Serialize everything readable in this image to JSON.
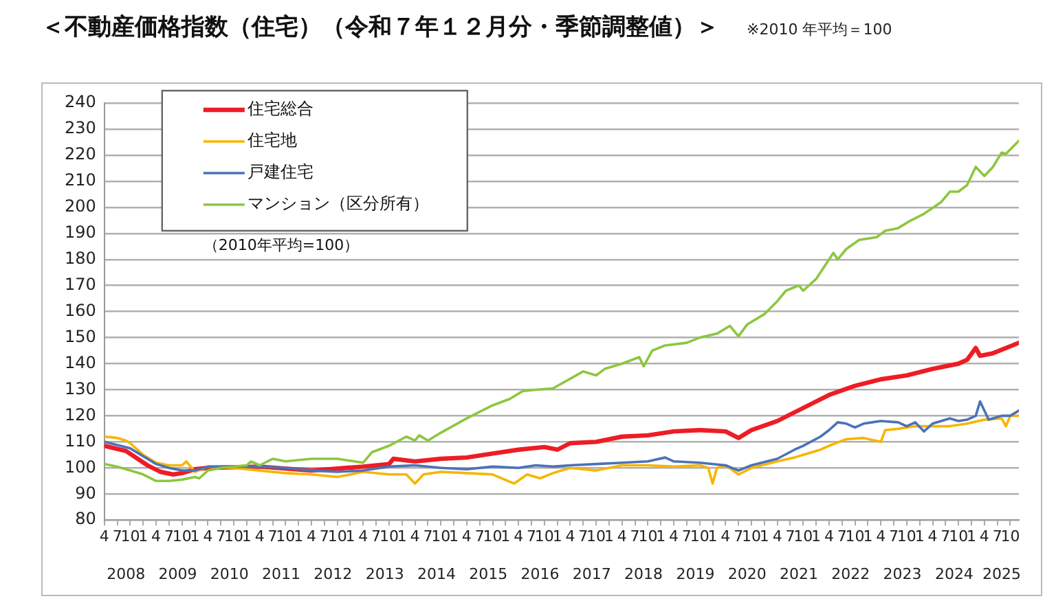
{
  "chart_data": {
    "type": "line",
    "title": "＜不動産価格指数（住宅）（令和７年１２月分・季節調整値）＞",
    "subtitle": "※2010 年平均＝100",
    "annotations": [
      "（2010年平均=100）"
    ],
    "xlim": [
      "2008-04",
      "2025-12"
    ],
    "xticks": [
      {
        "value": "2008-04",
        "label": "4"
      },
      {
        "value": "2008-07",
        "label": "7"
      },
      {
        "value": "2008-10",
        "label": "10"
      },
      {
        "value": "2009-01",
        "label": "1"
      },
      {
        "value": "2009-04",
        "label": "4"
      },
      {
        "value": "2009-07",
        "label": "7"
      },
      {
        "value": "2009-10",
        "label": "10"
      },
      {
        "value": "2010-01",
        "label": "1"
      },
      {
        "value": "2010-04",
        "label": "4"
      },
      {
        "value": "2010-07",
        "label": "7"
      },
      {
        "value": "2010-10",
        "label": "10"
      },
      {
        "value": "2011-01",
        "label": "1"
      },
      {
        "value": "2011-04",
        "label": "4"
      },
      {
        "value": "2011-07",
        "label": "7"
      },
      {
        "value": "2011-10",
        "label": "10"
      },
      {
        "value": "2012-01",
        "label": "1"
      },
      {
        "value": "2012-04",
        "label": "4"
      },
      {
        "value": "2012-07",
        "label": "7"
      },
      {
        "value": "2012-10",
        "label": "10"
      },
      {
        "value": "2013-01",
        "label": "1"
      },
      {
        "value": "2013-04",
        "label": "4"
      },
      {
        "value": "2013-07",
        "label": "7"
      },
      {
        "value": "2013-10",
        "label": "10"
      },
      {
        "value": "2014-01",
        "label": "1"
      },
      {
        "value": "2014-04",
        "label": "4"
      },
      {
        "value": "2014-07",
        "label": "7"
      },
      {
        "value": "2014-10",
        "label": "10"
      },
      {
        "value": "2015-01",
        "label": "1"
      },
      {
        "value": "2015-04",
        "label": "4"
      },
      {
        "value": "2015-07",
        "label": "7"
      },
      {
        "value": "2015-10",
        "label": "10"
      },
      {
        "value": "2016-01",
        "label": "1"
      },
      {
        "value": "2016-04",
        "label": "4"
      },
      {
        "value": "2016-07",
        "label": "7"
      },
      {
        "value": "2016-10",
        "label": "10"
      },
      {
        "value": "2017-01",
        "label": "1"
      },
      {
        "value": "2017-04",
        "label": "4"
      },
      {
        "value": "2017-07",
        "label": "7"
      },
      {
        "value": "2017-10",
        "label": "10"
      },
      {
        "value": "2018-01",
        "label": "1"
      },
      {
        "value": "2018-04",
        "label": "4"
      },
      {
        "value": "2018-07",
        "label": "7"
      },
      {
        "value": "2018-10",
        "label": "10"
      },
      {
        "value": "2019-01",
        "label": "1"
      },
      {
        "value": "2019-04",
        "label": "4"
      },
      {
        "value": "2019-07",
        "label": "7"
      },
      {
        "value": "2019-10",
        "label": "10"
      },
      {
        "value": "2020-01",
        "label": "1"
      },
      {
        "value": "2020-04",
        "label": "4"
      },
      {
        "value": "2020-07",
        "label": "7"
      },
      {
        "value": "2020-10",
        "label": "10"
      },
      {
        "value": "2021-01",
        "label": "1"
      },
      {
        "value": "2021-04",
        "label": "4"
      },
      {
        "value": "2021-07",
        "label": "7"
      },
      {
        "value": "2021-10",
        "label": "10"
      },
      {
        "value": "2022-01",
        "label": "1"
      },
      {
        "value": "2022-04",
        "label": "4"
      },
      {
        "value": "2022-07",
        "label": "7"
      },
      {
        "value": "2022-10",
        "label": "10"
      },
      {
        "value": "2023-01",
        "label": "1"
      },
      {
        "value": "2023-04",
        "label": "4"
      },
      {
        "value": "2023-07",
        "label": "7"
      },
      {
        "value": "2023-10",
        "label": "10"
      },
      {
        "value": "2024-01",
        "label": "1"
      },
      {
        "value": "2024-04",
        "label": "4"
      },
      {
        "value": "2024-07",
        "label": "7"
      },
      {
        "value": "2024-10",
        "label": "10"
      },
      {
        "value": "2025-01",
        "label": "1"
      },
      {
        "value": "2025-04",
        "label": "4"
      },
      {
        "value": "2025-07",
        "label": "7"
      },
      {
        "value": "2025-10",
        "label": "10"
      }
    ],
    "x2lim": [
      "2008-04",
      "2025-12"
    ],
    "x2ticks": [
      {
        "value": "2008-09",
        "label": "2008"
      },
      {
        "value": "2009-09",
        "label": "2009"
      },
      {
        "value": "2010-09",
        "label": "2010"
      },
      {
        "value": "2011-09",
        "label": "2011"
      },
      {
        "value": "2012-09",
        "label": "2012"
      },
      {
        "value": "2013-09",
        "label": "2013"
      },
      {
        "value": "2014-09",
        "label": "2014"
      },
      {
        "value": "2015-09",
        "label": "2015"
      },
      {
        "value": "2016-09",
        "label": "2016"
      },
      {
        "value": "2017-09",
        "label": "2017"
      },
      {
        "value": "2018-09",
        "label": "2018"
      },
      {
        "value": "2019-09",
        "label": "2019"
      },
      {
        "value": "2020-09",
        "label": "2020"
      },
      {
        "value": "2021-09",
        "label": "2021"
      },
      {
        "value": "2022-09",
        "label": "2022"
      },
      {
        "value": "2023-09",
        "label": "2023"
      },
      {
        "value": "2024-09",
        "label": "2024"
      },
      {
        "value": "2025-08",
        "label": "2025"
      }
    ],
    "ylim": [
      80,
      240
    ],
    "yticks": [
      80,
      90,
      100,
      110,
      120,
      130,
      140,
      150,
      160,
      170,
      180,
      190,
      200,
      210,
      220,
      230,
      240
    ],
    "grid": "y",
    "legend": "top left",
    "marker": "none",
    "line_style": "solid",
    "series": [
      {
        "name": "住宅総合",
        "color": "#ee1c25",
        "x": [
          "2008-04",
          "2008-09",
          "2009-02",
          "2009-05",
          "2009-08",
          "2009-10",
          "2010-01",
          "2010-04",
          "2011-04",
          "2012-04",
          "2013-04",
          "2013-10",
          "2013-11",
          "2014-04",
          "2014-10",
          "2015-04",
          "2015-10",
          "2016-04",
          "2016-10",
          "2017-01",
          "2017-04",
          "2017-10",
          "2018-04",
          "2018-10",
          "2019-04",
          "2019-10",
          "2020-04",
          "2020-07",
          "2020-10",
          "2021-04",
          "2021-10",
          "2022-04",
          "2022-10",
          "2023-04",
          "2023-10",
          "2024-04",
          "2024-10",
          "2024-12",
          "2025-02",
          "2025-03",
          "2025-06",
          "2025-12"
        ],
        "values": [
          108.5,
          106.5,
          101,
          98.5,
          97.5,
          98,
          99.5,
          100,
          100.5,
          99,
          100.5,
          101.5,
          103.5,
          102.5,
          103.5,
          104,
          105.5,
          107,
          108,
          107,
          109.5,
          110,
          112,
          112.5,
          114,
          114.5,
          114,
          111.5,
          114.5,
          118,
          123,
          128,
          131.5,
          134,
          135.5,
          138,
          140,
          141.5,
          146,
          143,
          144,
          148
        ]
      },
      {
        "name": "住宅地",
        "color": "#f7b500",
        "x": [
          "2008-04",
          "2008-07",
          "2008-09",
          "2008-10",
          "2009-01",
          "2009-04",
          "2009-07",
          "2009-10",
          "2009-11",
          "2010-01",
          "2010-04",
          "2010-10",
          "2011-04",
          "2011-10",
          "2012-04",
          "2012-10",
          "2013-04",
          "2013-10",
          "2014-02",
          "2014-04",
          "2014-06",
          "2014-10",
          "2015-04",
          "2015-10",
          "2016-03",
          "2016-06",
          "2016-09",
          "2016-12",
          "2017-04",
          "2017-10",
          "2018-04",
          "2018-10",
          "2019-04",
          "2019-10",
          "2019-12",
          "2020-01",
          "2020-02",
          "2020-04",
          "2020-07",
          "2020-10",
          "2021-04",
          "2021-08",
          "2021-10",
          "2022-02",
          "2022-04",
          "2022-08",
          "2022-12",
          "2023-04",
          "2023-05",
          "2023-08",
          "2023-12",
          "2024-04",
          "2024-08",
          "2024-12",
          "2025-04",
          "2025-08",
          "2025-09",
          "2025-10",
          "2025-12"
        ],
        "values": [
          112,
          111.5,
          110.5,
          109.5,
          105,
          102,
          101,
          101,
          102.5,
          98.5,
          100.5,
          100,
          99,
          98,
          97.5,
          96.5,
          98.5,
          97.5,
          97.5,
          94,
          97.5,
          98.5,
          98,
          97.5,
          94,
          97.5,
          96,
          98,
          100,
          99,
          101,
          101,
          100.5,
          101,
          100,
          94,
          100,
          101,
          97.5,
          100,
          102.5,
          104,
          105,
          107,
          108.5,
          111,
          111.5,
          110,
          114.5,
          115,
          116,
          116,
          116,
          117,
          118.5,
          119,
          116,
          120,
          120
        ]
      },
      {
        "name": "戸建住宅",
        "color": "#4a72b8",
        "x": [
          "2008-04",
          "2008-10",
          "2009-04",
          "2009-07",
          "2009-10",
          "2010-01",
          "2010-04",
          "2011-04",
          "2011-10",
          "2012-04",
          "2012-10",
          "2013-04",
          "2013-10",
          "2014-04",
          "2014-10",
          "2015-04",
          "2015-10",
          "2016-04",
          "2016-08",
          "2016-12",
          "2017-04",
          "2017-10",
          "2018-04",
          "2018-10",
          "2019-02",
          "2019-04",
          "2019-10",
          "2020-04",
          "2020-07",
          "2020-10",
          "2021-04",
          "2021-08",
          "2021-10",
          "2022-02",
          "2022-04",
          "2022-06",
          "2022-08",
          "2022-10",
          "2022-12",
          "2023-04",
          "2023-08",
          "2023-10",
          "2023-12",
          "2024-02",
          "2024-04",
          "2024-08",
          "2024-10",
          "2024-12",
          "2025-02",
          "2025-03",
          "2025-05",
          "2025-08",
          "2025-10",
          "2025-12"
        ],
        "values": [
          110,
          107.5,
          101.5,
          100,
          99,
          99,
          100.5,
          100.5,
          100,
          99,
          98.5,
          99,
          100.5,
          101,
          100,
          99.5,
          100.5,
          100,
          101,
          100.5,
          101,
          101.5,
          102,
          102.5,
          104,
          102.5,
          102,
          101,
          99,
          101,
          103.5,
          107,
          108.5,
          112,
          114.5,
          117.5,
          117,
          115.5,
          117,
          118,
          117.5,
          116,
          117.5,
          114,
          117,
          119,
          118,
          118.5,
          120,
          125.5,
          118.5,
          120,
          120,
          122
        ]
      },
      {
        "name": "マンション（区分所有）",
        "color": "#8dc63f",
        "x": [
          "2008-04",
          "2008-07",
          "2008-10",
          "2009-01",
          "2009-04",
          "2009-07",
          "2009-10",
          "2010-01",
          "2010-02",
          "2010-04",
          "2010-07",
          "2011-01",
          "2011-02",
          "2011-04",
          "2011-07",
          "2011-10",
          "2012-04",
          "2012-10",
          "2013-04",
          "2013-06",
          "2013-10",
          "2014-02",
          "2014-04",
          "2014-05",
          "2014-07",
          "2014-10",
          "2015-04",
          "2015-10",
          "2016-02",
          "2016-05",
          "2016-08",
          "2016-12",
          "2017-07",
          "2017-10",
          "2017-12",
          "2018-04",
          "2018-08",
          "2018-09",
          "2018-11",
          "2019-02",
          "2019-07",
          "2019-10",
          "2020-02",
          "2020-05",
          "2020-07",
          "2020-09",
          "2021-01",
          "2021-04",
          "2021-06",
          "2021-09",
          "2021-10",
          "2022-01",
          "2022-03",
          "2022-05",
          "2022-06",
          "2022-08",
          "2022-11",
          "2023-03",
          "2023-05",
          "2023-08",
          "2023-11",
          "2024-02",
          "2024-06",
          "2024-08",
          "2024-10",
          "2024-12",
          "2025-02",
          "2025-04",
          "2025-06",
          "2025-08",
          "2025-09",
          "2025-12"
        ],
        "values": [
          101.5,
          100.5,
          99,
          97.5,
          95,
          95,
          95.5,
          96.5,
          96,
          99,
          100,
          101,
          102.5,
          101,
          103.5,
          102.5,
          103.5,
          103.5,
          102,
          106,
          108.5,
          112,
          110.5,
          112.5,
          110.5,
          113.5,
          119,
          124,
          126.5,
          129.5,
          130,
          130.5,
          137,
          135.5,
          138,
          140,
          142.5,
          139,
          145,
          147,
          148,
          150,
          151.5,
          154.5,
          150.5,
          155,
          159,
          164,
          168,
          170,
          168,
          172.5,
          177.5,
          182.5,
          180,
          184,
          187.5,
          188.5,
          191,
          192,
          195,
          197.5,
          202,
          206,
          206,
          208.5,
          215.5,
          212,
          215.5,
          221,
          220.5,
          225.5
        ]
      }
    ]
  }
}
